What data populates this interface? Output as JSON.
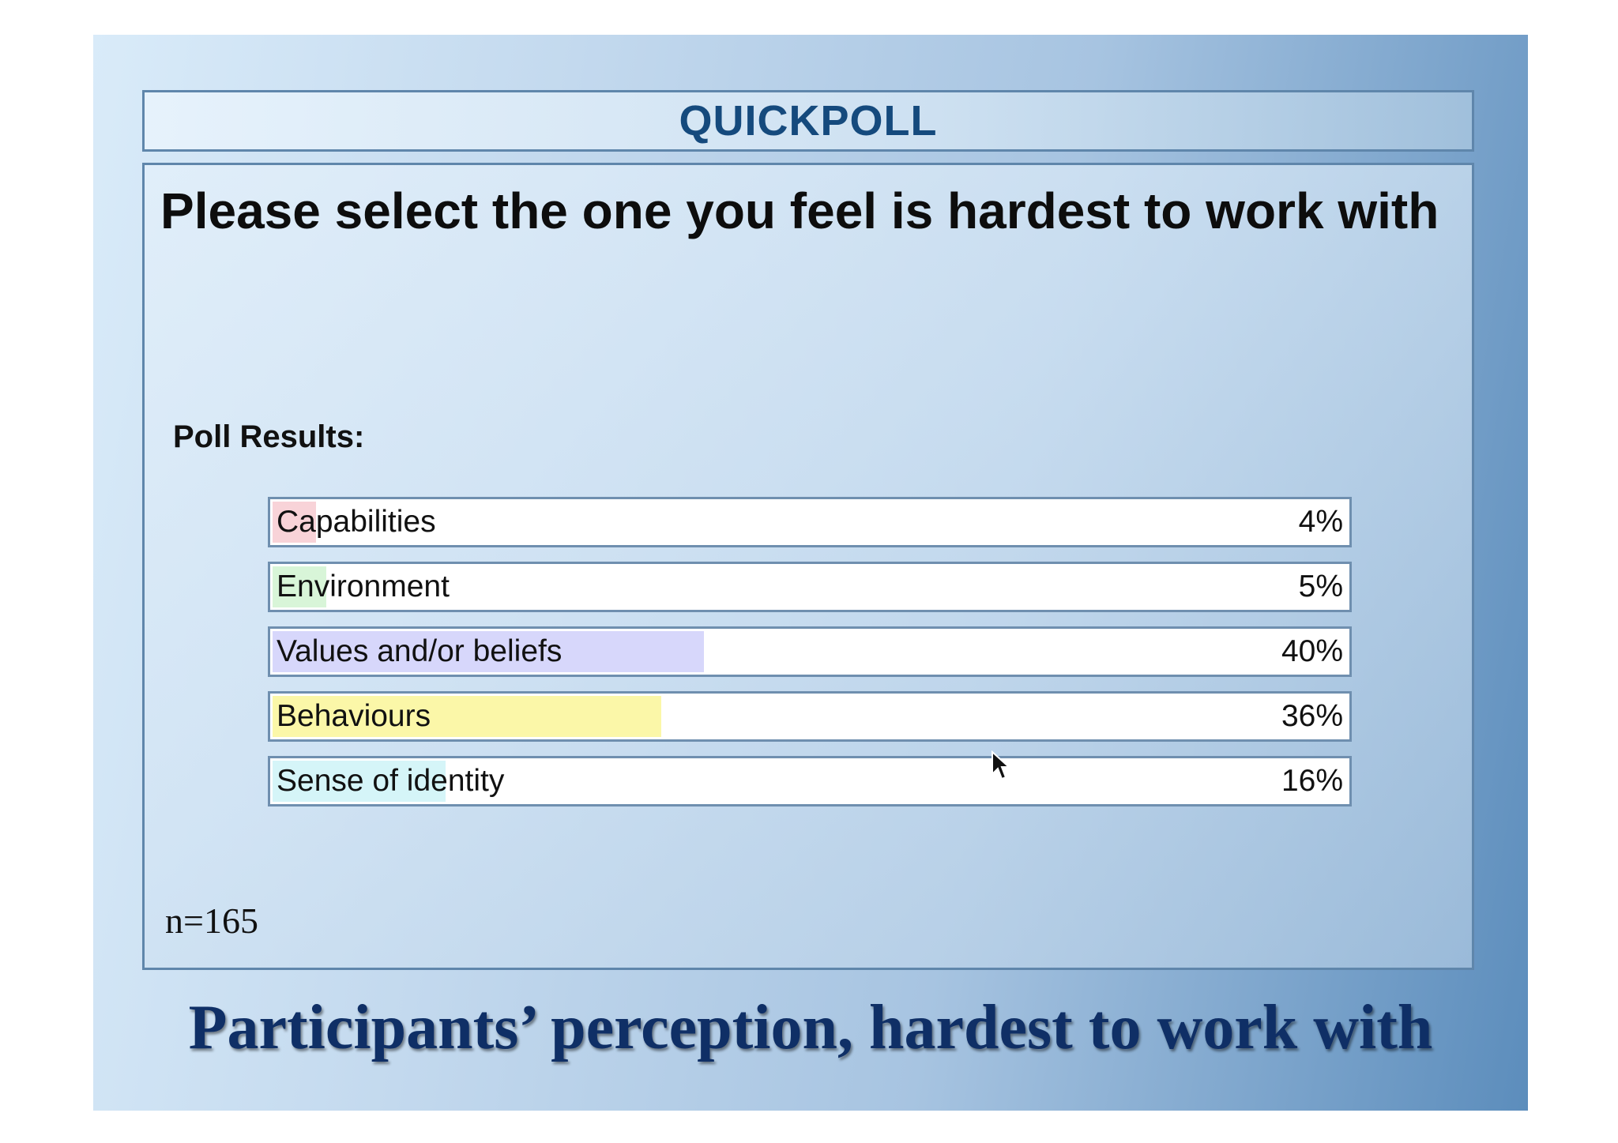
{
  "header": {
    "title": "QUICKPOLL"
  },
  "poll": {
    "question": "Please select the one you feel is hardest to work with",
    "results_label": "Poll Results:",
    "sample_size": "n=165",
    "options": [
      {
        "label": "Capabilities",
        "percent_text": "4%",
        "percent": 4,
        "color": "#f8d3d8"
      },
      {
        "label": "Environment",
        "percent_text": "5%",
        "percent": 5,
        "color": "#d8f5d8"
      },
      {
        "label": "Values and/or beliefs",
        "percent_text": "40%",
        "percent": 40,
        "color": "#d7d7fb"
      },
      {
        "label": "Behaviours",
        "percent_text": "36%",
        "percent": 36,
        "color": "#fbf7a8"
      },
      {
        "label": "Sense of identity",
        "percent_text": "16%",
        "percent": 16,
        "color": "#d5f5f8"
      }
    ]
  },
  "caption": "Participants’ perception, hardest to work with",
  "colors": {
    "header_text": "#154a7d",
    "caption_text": "#0f2f66",
    "border": "#5f86ab"
  },
  "icons": {
    "cursor": "mouse-pointer-icon"
  }
}
